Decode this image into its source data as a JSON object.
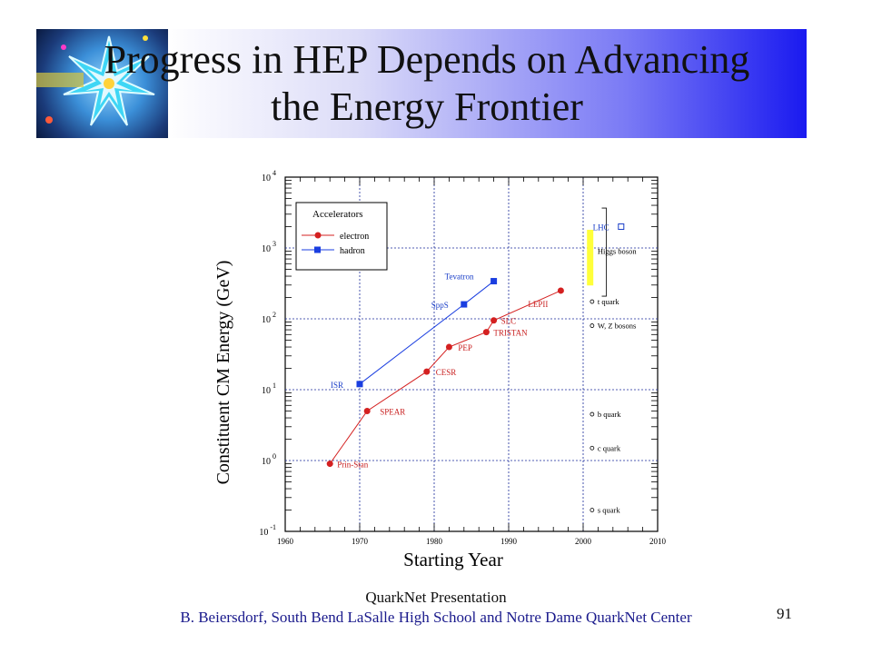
{
  "slide": {
    "title_line1": "Progress in HEP Depends on Advancing",
    "title_line2": "the Energy Frontier",
    "footer_line1": "QuarkNet Presentation",
    "footer_line2": "B. Beiersdorf,  South Bend LaSalle High School  and  Notre Dame QuarkNet Center",
    "page_number": "91"
  },
  "chart_data": {
    "type": "scatter",
    "xlabel": "Starting Year",
    "ylabel": "Constituent CM Energy (GeV)",
    "xlim": [
      1960,
      2010
    ],
    "ylim_exponent": [
      -1,
      4
    ],
    "yscale": "log",
    "grid": true,
    "x_ticks": [
      "1960",
      "1970",
      "1980",
      "1990",
      "2000",
      "2010"
    ],
    "y_tick_base": "10",
    "y_ticks": [
      {
        "exp": "4",
        "value": 10000
      },
      {
        "exp": "3",
        "value": 1000
      },
      {
        "exp": "2",
        "value": 100
      },
      {
        "exp": "1",
        "value": 10
      },
      {
        "exp": "0",
        "value": 1
      },
      {
        "exp": "-1",
        "value": 0.1
      }
    ],
    "legend": {
      "title": "Accelerators",
      "position": "top-left",
      "entries": [
        {
          "label": "electron",
          "color": "#d42020",
          "marker": "circle"
        },
        {
          "label": "hadron",
          "color": "#1a3ee0",
          "marker": "square"
        }
      ]
    },
    "series": [
      {
        "name": "electron",
        "color": "#d42020",
        "points": [
          {
            "x": 1966,
            "y": 0.9,
            "label": "Prin-Stan"
          },
          {
            "x": 1971,
            "y": 5,
            "label": "SPEAR"
          },
          {
            "x": 1979,
            "y": 18,
            "label": "CESR"
          },
          {
            "x": 1982,
            "y": 40,
            "label": "PEP"
          },
          {
            "x": 1987,
            "y": 65,
            "label": "TRISTAN"
          },
          {
            "x": 1988,
            "y": 95,
            "label": "SLC"
          },
          {
            "x": 1997,
            "y": 250,
            "label": "LEPII"
          }
        ]
      },
      {
        "name": "hadron",
        "color": "#1a3ee0",
        "points": [
          {
            "x": 1970,
            "y": 12,
            "label": "ISR"
          },
          {
            "x": 1984,
            "y": 160,
            "label": "SppS"
          },
          {
            "x": 1988,
            "y": 340,
            "label": "Tevatron"
          }
        ]
      }
    ],
    "future": {
      "x": 2002,
      "y": 2000,
      "label": "LHC"
    },
    "particles": [
      {
        "label": "Higgs boson",
        "y": 900
      },
      {
        "label": "t quark",
        "y": 175
      },
      {
        "label": "W, Z bosons",
        "y": 80
      },
      {
        "label": "b quark",
        "y": 4.5
      },
      {
        "label": "c quark",
        "y": 1.5
      },
      {
        "label": "s quark",
        "y": 0.2
      }
    ],
    "higgs_range": {
      "low": 115,
      "high": 1000
    }
  }
}
